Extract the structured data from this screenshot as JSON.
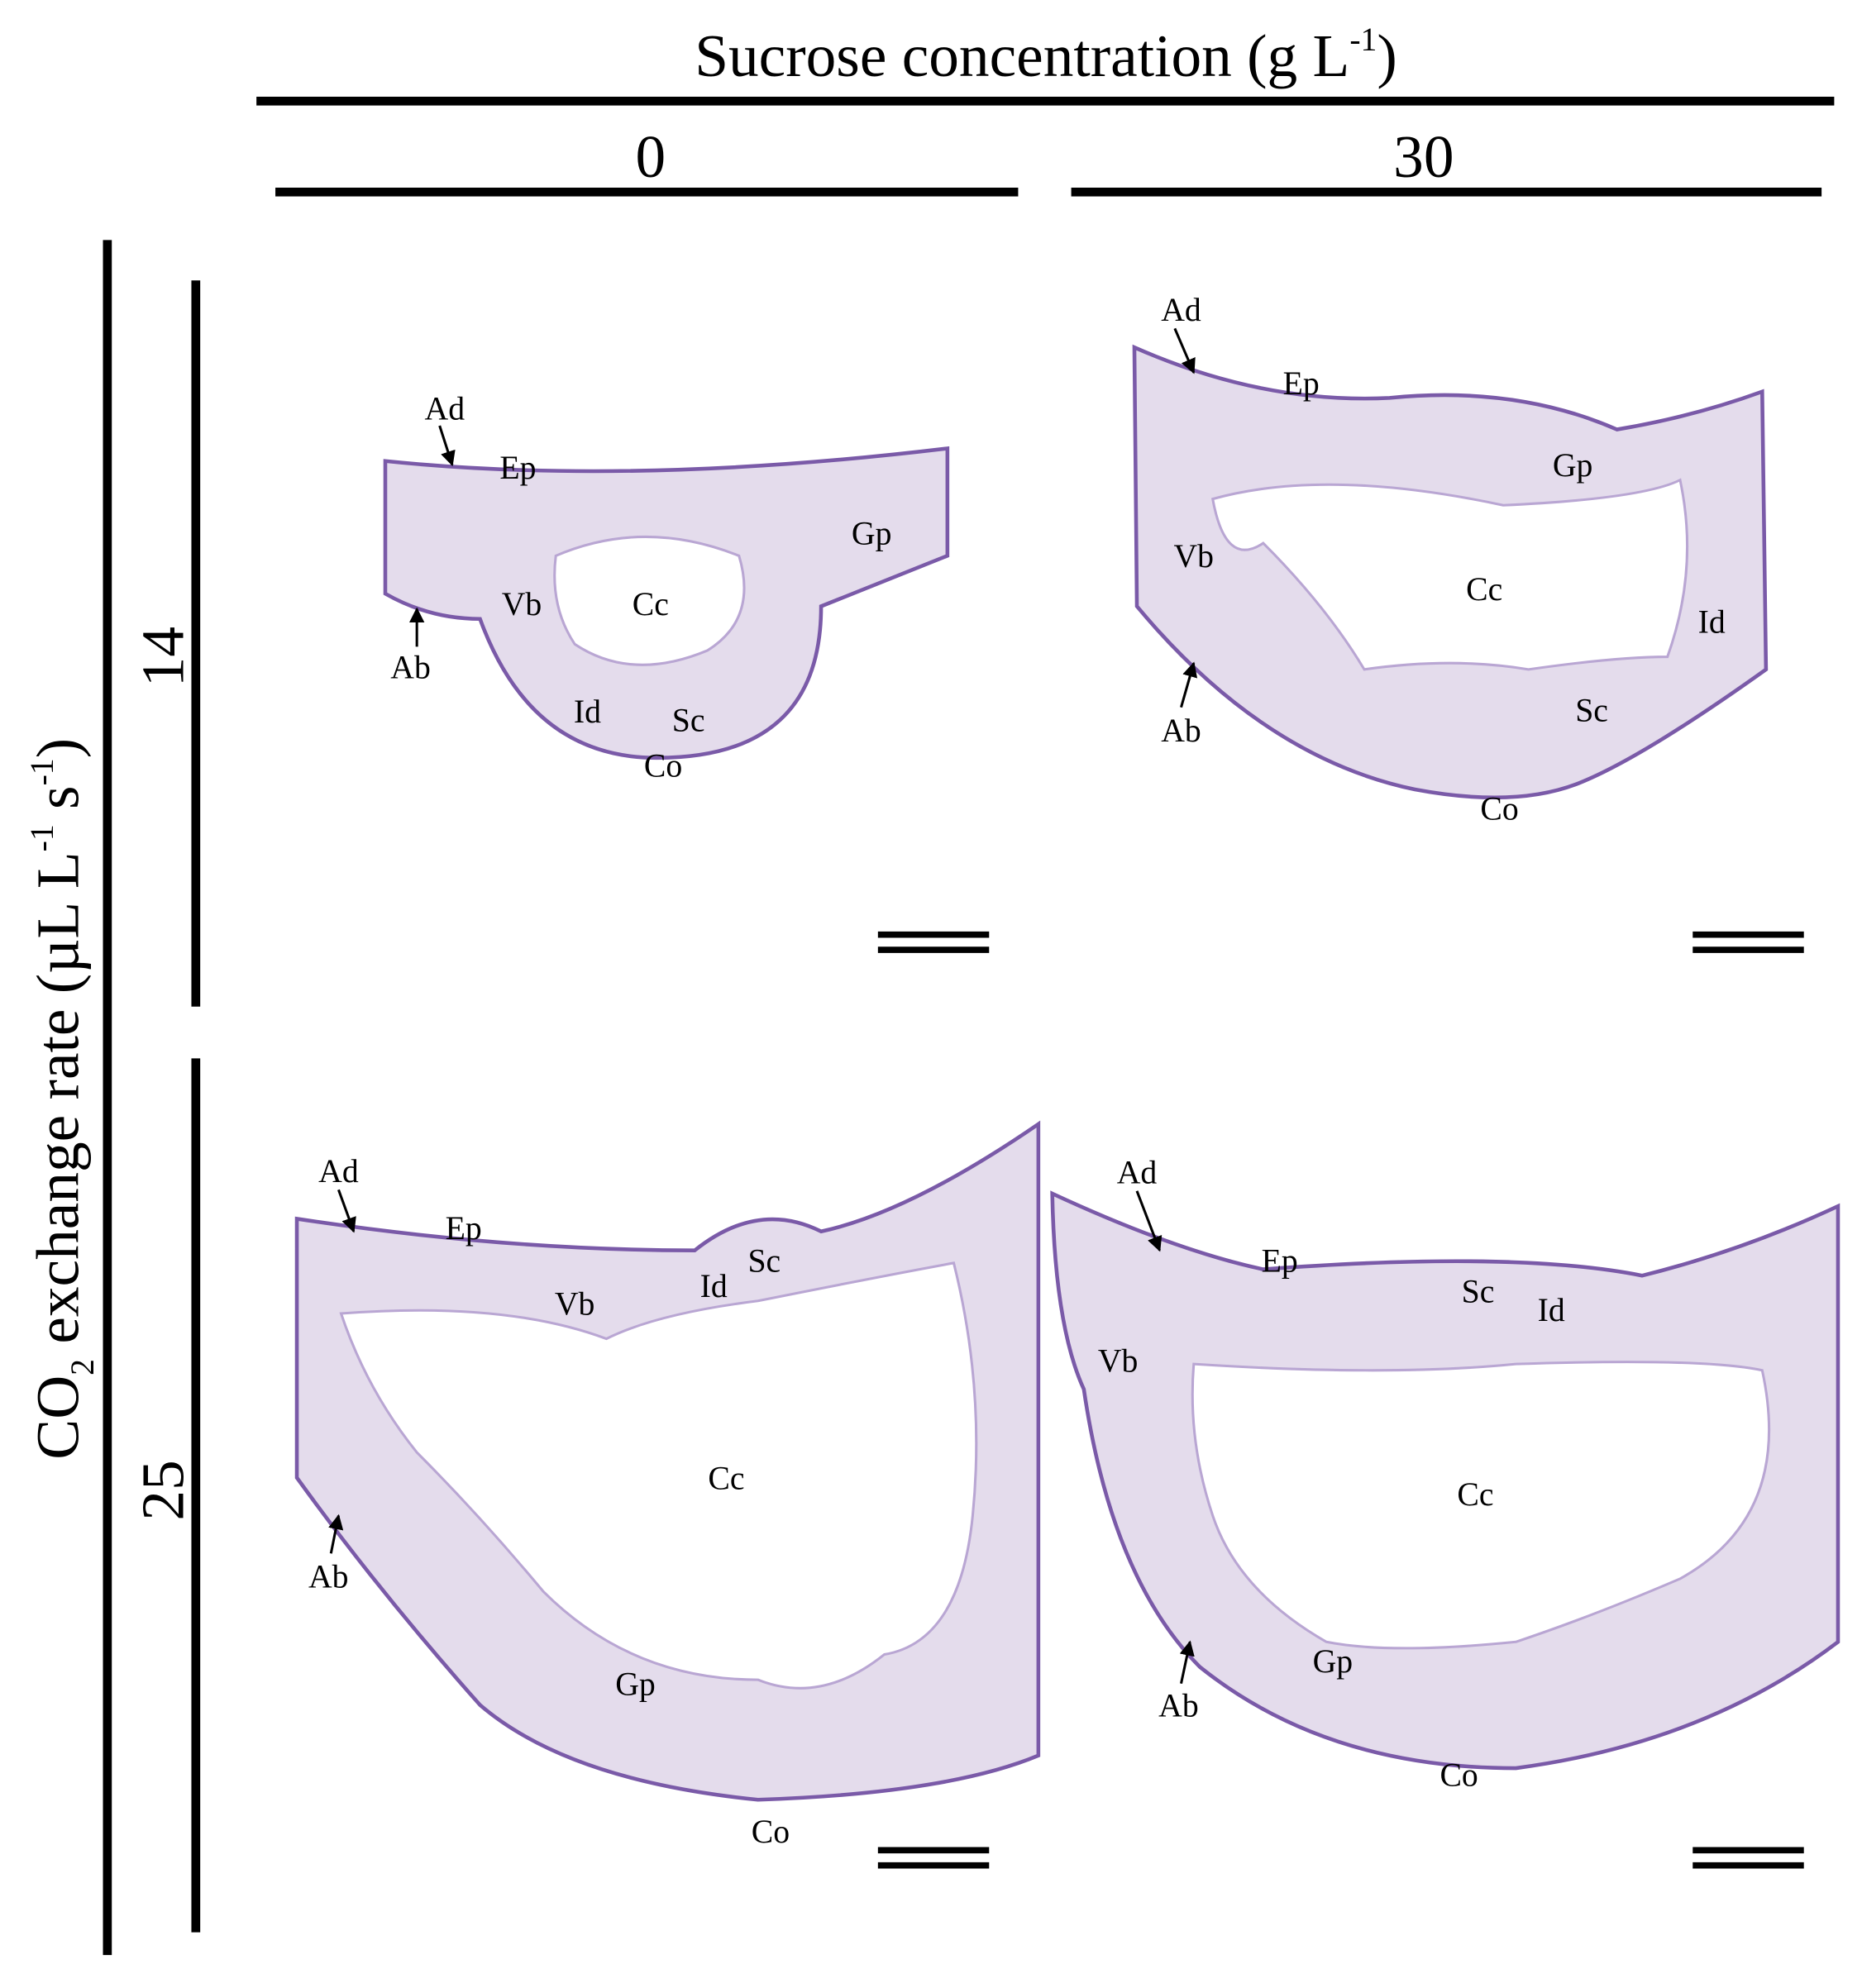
{
  "header": {
    "title": [
      "Sucrose concentration (g L",
      "-1",
      ")"
    ],
    "columns": [
      "0",
      "30"
    ],
    "row_axis": [
      "CO",
      "2",
      " exchange rate (µL L",
      "-1",
      " s",
      "-1",
      ")"
    ],
    "rows": [
      "14",
      "25"
    ]
  },
  "panels": [
    {
      "labels": [
        "Ad",
        "Ep",
        "Gp",
        "Vb",
        "Cc",
        "Ab",
        "Id",
        "Sc",
        "Co"
      ]
    },
    {
      "labels": [
        "Ad",
        "Ep",
        "Gp",
        "Vb",
        "Cc",
        "Id",
        "Ab",
        "Sc",
        "Co"
      ]
    },
    {
      "labels": [
        "Ad",
        "Ep",
        "Vb",
        "Id",
        "Sc",
        "Cc",
        "Ab",
        "Gp",
        "Co"
      ]
    },
    {
      "labels": [
        "Ad",
        "Ep",
        "Sc",
        "Id",
        "Vb",
        "Cc",
        "Ab",
        "Gp",
        "Co"
      ]
    }
  ]
}
